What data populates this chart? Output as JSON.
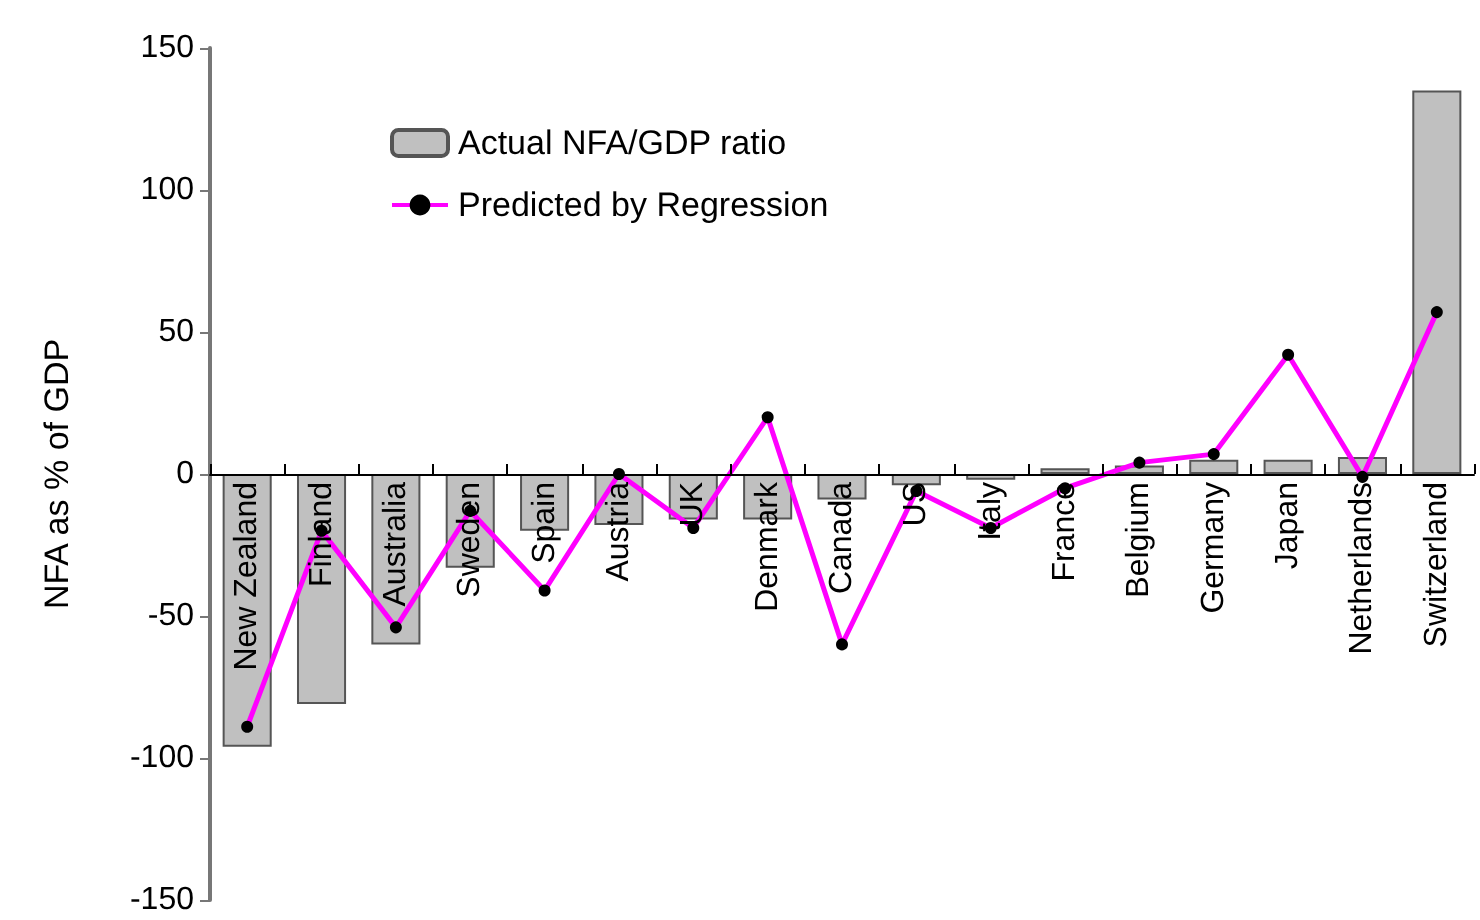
{
  "chart_data": {
    "type": "bar",
    "ylabel": "NFA as % of GDP",
    "categories": [
      "New Zealand",
      "Finland",
      "Australia",
      "Sweden",
      "Spain",
      "Austria",
      "UK",
      "Denmark",
      "Canada",
      "US",
      "Italy",
      "France",
      "Belgium",
      "Germany",
      "Japan",
      "Netherlands",
      "Switzerland"
    ],
    "series": [
      {
        "name": "Actual NFA/GDP ratio",
        "color": "#c0c0c0",
        "values": [
          -96,
          -81,
          -60,
          -33,
          -20,
          -18,
          -16,
          -16,
          -9,
          -4,
          -2,
          2,
          3,
          5,
          5,
          6,
          135
        ]
      },
      {
        "name": "Predicted by Regression",
        "type": "line",
        "color": "#ff00ff",
        "marker": "circle",
        "values": [
          -89,
          -20,
          -54,
          -13,
          -41,
          0,
          -19,
          20,
          -60,
          -6,
          -19,
          -5,
          4,
          7,
          42,
          -1,
          57
        ]
      }
    ],
    "ylim": [
      -150,
      150
    ],
    "yticks": [
      -150,
      -100,
      -50,
      0,
      50,
      100,
      150
    ],
    "legend": "top left"
  }
}
